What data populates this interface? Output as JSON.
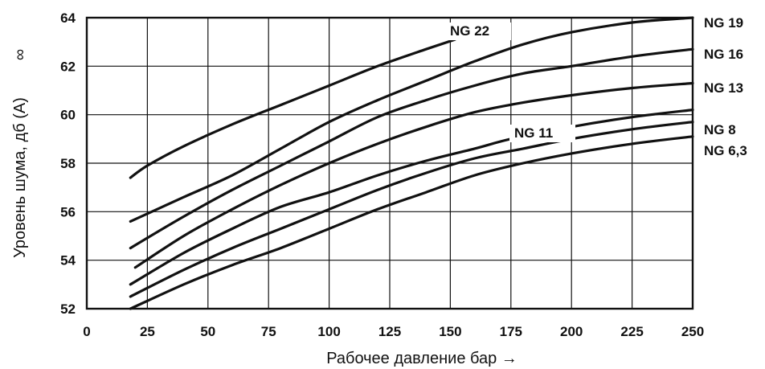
{
  "chart_data": {
    "type": "line",
    "xlabel": "Рабочее давление бар →",
    "ylabel": "Уровень шума, дб (A)",
    "ylabel_symbol": "∞",
    "xlim": [
      0,
      250
    ],
    "ylim": [
      52,
      64
    ],
    "x_ticks": [
      "0",
      "25",
      "50",
      "75",
      "100",
      "125",
      "150",
      "175",
      "200",
      "225",
      "250"
    ],
    "y_ticks": [
      "52",
      "54",
      "56",
      "58",
      "60",
      "62",
      "64"
    ],
    "grid": true,
    "series": [
      {
        "name": "NG 22",
        "x": [
          18,
          25,
          40,
          60,
          80,
          100,
          120,
          140,
          152
        ],
        "y": [
          57.4,
          57.9,
          58.7,
          59.6,
          60.4,
          61.2,
          62.0,
          62.7,
          63.1
        ]
      },
      {
        "name": "NG 19",
        "x": [
          18,
          40,
          60,
          80,
          100,
          120,
          140,
          160,
          180,
          200,
          225,
          250
        ],
        "y": [
          55.6,
          56.6,
          57.5,
          58.6,
          59.7,
          60.6,
          61.4,
          62.2,
          62.9,
          63.4,
          63.8,
          64.0
        ]
      },
      {
        "name": "NG 16",
        "x": [
          18,
          40,
          60,
          80,
          100,
          120,
          140,
          160,
          180,
          200,
          225,
          250
        ],
        "y": [
          54.5,
          55.8,
          56.9,
          57.9,
          58.9,
          59.9,
          60.6,
          61.2,
          61.7,
          62.0,
          62.4,
          62.7
        ]
      },
      {
        "name": "NG 13",
        "x": [
          20,
          40,
          60,
          80,
          100,
          120,
          140,
          160,
          180,
          200,
          225,
          250
        ],
        "y": [
          53.7,
          55.0,
          56.1,
          57.1,
          58.0,
          58.8,
          59.5,
          60.1,
          60.5,
          60.8,
          61.1,
          61.3
        ]
      },
      {
        "name": "NG 11",
        "x": [
          18,
          40,
          60,
          80,
          100,
          120,
          140,
          160,
          175,
          200,
          225,
          250
        ],
        "y": [
          53.0,
          54.3,
          55.3,
          56.2,
          56.8,
          57.5,
          58.1,
          58.6,
          59.0,
          59.5,
          59.9,
          60.2
        ]
      },
      {
        "name": "NG 8",
        "x": [
          18,
          40,
          60,
          80,
          100,
          120,
          140,
          160,
          180,
          200,
          225,
          250
        ],
        "y": [
          52.5,
          53.6,
          54.5,
          55.3,
          56.1,
          56.9,
          57.6,
          58.2,
          58.6,
          59.0,
          59.4,
          59.7
        ]
      },
      {
        "name": "NG 6,3",
        "x": [
          18,
          40,
          60,
          80,
          100,
          120,
          140,
          160,
          180,
          200,
          225,
          250
        ],
        "y": [
          52.0,
          53.0,
          53.8,
          54.5,
          55.3,
          56.1,
          56.8,
          57.5,
          58.0,
          58.4,
          58.8,
          59.1
        ]
      }
    ]
  }
}
